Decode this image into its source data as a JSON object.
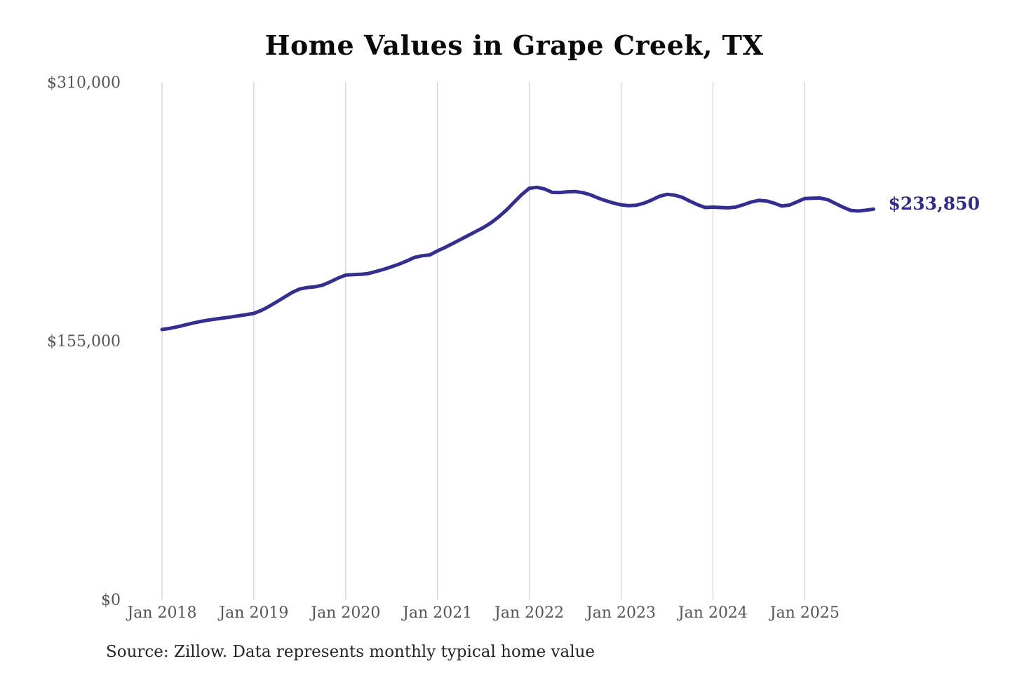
{
  "page": {
    "title": "Home Values in Grape Creek, TX",
    "source_note": "Source: Zillow. Data represents monthly typical home value"
  },
  "colors": {
    "background": "#ffffff",
    "line": "#352e91",
    "final_label": "#302b8c",
    "grid": "#c6c6c6",
    "axis_text": "#555555",
    "title_text": "#0a0a0a",
    "source_text": "#262626"
  },
  "chart_data": {
    "type": "line",
    "title": "Home Values in Grape Creek, TX",
    "xlabel": "",
    "ylabel": "",
    "unit": "USD",
    "grid": "vertical-only",
    "legend": "none",
    "ylim": [
      0,
      310000
    ],
    "y_ticks": [
      310000,
      155000,
      0
    ],
    "y_tick_labels": [
      "$310,000",
      "$155,000",
      "$0"
    ],
    "x_tick_labels": [
      "Jan 2018",
      "Jan 2019",
      "Jan 2020",
      "Jan 2021",
      "Jan 2022",
      "Jan 2023",
      "Jan 2024",
      "Jan 2025"
    ],
    "months_per_gridline": 12,
    "start_month": "Jan 2018",
    "end_month": "Oct 2025",
    "final_value": 233850,
    "final_value_label": "$233,850",
    "series": [
      {
        "name": "Monthly typical home value",
        "monthly_values": [
          161700,
          162400,
          163300,
          164400,
          165500,
          166500,
          167300,
          168000,
          168600,
          169200,
          169900,
          170600,
          171400,
          173200,
          175600,
          178300,
          181100,
          183900,
          186000,
          186900,
          187300,
          188300,
          190300,
          192500,
          194300,
          194600,
          194800,
          195300,
          196500,
          197800,
          199300,
          200900,
          202800,
          204900,
          205900,
          206400,
          208800,
          210900,
          213200,
          215600,
          218000,
          220400,
          222800,
          225700,
          229200,
          233200,
          237900,
          242500,
          246300,
          246900,
          245900,
          243900,
          243800,
          244200,
          244400,
          243700,
          242400,
          240500,
          238900,
          237500,
          236400,
          235900,
          236200,
          237400,
          239300,
          241500,
          242700,
          242200,
          240900,
          238600,
          236500,
          234800,
          235000,
          234800,
          234600,
          235100,
          236500,
          238100,
          239100,
          238700,
          237400,
          235700,
          236300,
          238200,
          240200,
          240400,
          240500,
          239500,
          237300,
          235000,
          233100,
          232700,
          233200,
          233850
        ]
      }
    ]
  }
}
